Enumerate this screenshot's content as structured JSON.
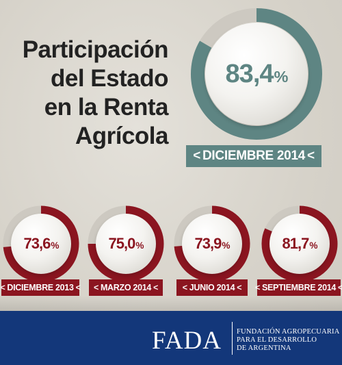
{
  "title_lines": [
    "Participación",
    "del Estado",
    "en la Renta",
    "Agrícola"
  ],
  "chart_data": {
    "type": "donut",
    "series": [
      {
        "period": "DICIEMBRE 2014",
        "value": 83.4,
        "value_label": "83,4",
        "unit": "%"
      },
      {
        "period": "DICIEMBRE 2013",
        "value": 73.6,
        "value_label": "73,6",
        "unit": "%"
      },
      {
        "period": "MARZO 2014",
        "value": 75.0,
        "value_label": "75,0",
        "unit": "%"
      },
      {
        "period": "JUNIO 2014",
        "value": 73.9,
        "value_label": "73,9",
        "unit": "%"
      },
      {
        "period": "SEPTIEMBRE 2014",
        "value": 81.7,
        "value_label": "81,7",
        "unit": "%"
      }
    ],
    "ylim": [
      0,
      100
    ]
  },
  "colors": {
    "highlight": "#5e8583",
    "history": "#8b1520",
    "track": "#cdc9c1",
    "footer": "#13377a"
  },
  "ribbon_chevrons": {
    "left": "<",
    "right": "<"
  },
  "footer": {
    "logo": "FADA",
    "org_lines": [
      "FUNDACIÓN AGROPECUARIA",
      "PARA EL DESARROLLO",
      "DE ARGENTINA"
    ]
  }
}
